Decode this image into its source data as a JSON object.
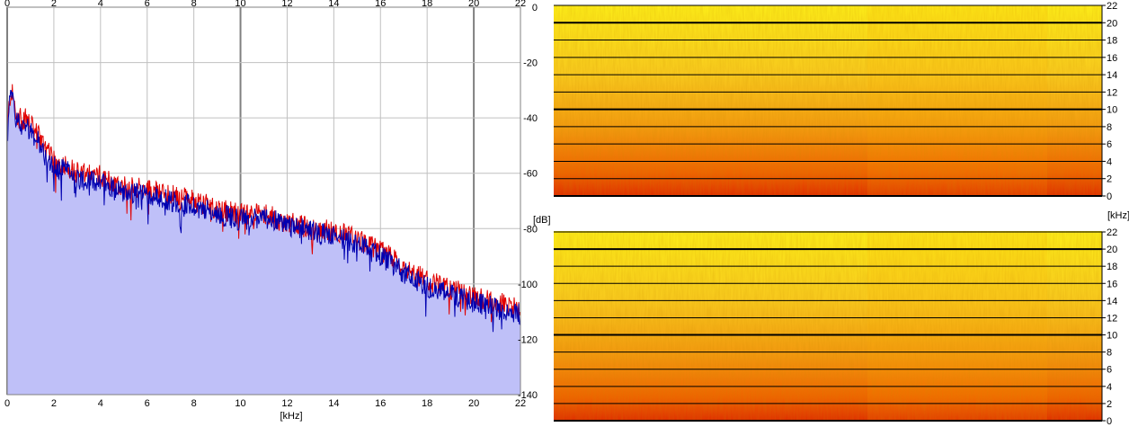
{
  "chart_data": [
    {
      "type": "area",
      "title": "",
      "xlabel": "[kHz]",
      "ylabel": "[dB]",
      "xlim": [
        0,
        22
      ],
      "ylim": [
        -140,
        0
      ],
      "x_ticks": [
        0,
        2,
        4,
        6,
        8,
        10,
        12,
        14,
        16,
        18,
        20,
        22
      ],
      "y_ticks": [
        0,
        -20,
        -40,
        -60,
        -80,
        -100,
        -120,
        -140
      ],
      "grid": true,
      "colors": {
        "fill": "#bfc0f8",
        "grid": "#c0c0c0",
        "major_grid": "#808080",
        "series": [
          "#e00000",
          "#0000b0"
        ]
      },
      "series": [
        {
          "color": "#e00000",
          "x": [
            0.0,
            0.1,
            0.2,
            0.3,
            0.4,
            0.6,
            0.8,
            1.0,
            1.2,
            1.5,
            2.0,
            2.5,
            3.0,
            3.5,
            4.0,
            5.0,
            6.0,
            7.0,
            8.0,
            9.0,
            10.0,
            11.0,
            12.0,
            13.0,
            14.0,
            15.0,
            16.0,
            17.0,
            18.0,
            19.0,
            20.0,
            21.0,
            22.0
          ],
          "values": [
            -45,
            -32,
            -30,
            -34,
            -38,
            -40,
            -39,
            -42,
            -44,
            -48,
            -55,
            -56,
            -59,
            -60,
            -60,
            -64,
            -65,
            -67,
            -69,
            -72,
            -74,
            -74,
            -77,
            -79,
            -80,
            -83,
            -87,
            -93,
            -98,
            -101,
            -104,
            -106,
            -108
          ]
        },
        {
          "color": "#0000b0",
          "x": [
            0.0,
            0.1,
            0.2,
            0.3,
            0.4,
            0.6,
            0.8,
            1.0,
            1.2,
            1.5,
            2.0,
            2.5,
            3.0,
            3.5,
            4.0,
            5.0,
            6.0,
            7.0,
            8.0,
            9.0,
            10.0,
            11.0,
            12.0,
            13.0,
            14.0,
            15.0,
            16.0,
            17.0,
            18.0,
            19.0,
            20.0,
            21.0,
            22.0
          ],
          "values": [
            -48,
            -34,
            -31,
            -35,
            -40,
            -42,
            -41,
            -44,
            -46,
            -50,
            -57,
            -58,
            -61,
            -62,
            -62,
            -66,
            -67,
            -69,
            -71,
            -74,
            -76,
            -75,
            -78,
            -80,
            -82,
            -85,
            -89,
            -95,
            -100,
            -103,
            -106,
            -108,
            -110
          ]
        }
      ]
    },
    {
      "type": "heatmap",
      "title": "",
      "ylabel": "[kHz]",
      "ylim": [
        0,
        22
      ],
      "y_ticks": [
        0,
        2,
        4,
        6,
        8,
        10,
        12,
        14,
        16,
        18,
        20,
        22
      ],
      "grid": true,
      "colormap": [
        "#ffff20",
        "#f08000",
        "#e02000"
      ]
    },
    {
      "type": "heatmap",
      "title": "",
      "ylim": [
        0,
        22
      ],
      "y_ticks": [
        0,
        2,
        4,
        6,
        8,
        10,
        12,
        14,
        16,
        18,
        20,
        22
      ],
      "grid": true,
      "colormap": [
        "#ffff20",
        "#f08000",
        "#e02000"
      ]
    }
  ]
}
